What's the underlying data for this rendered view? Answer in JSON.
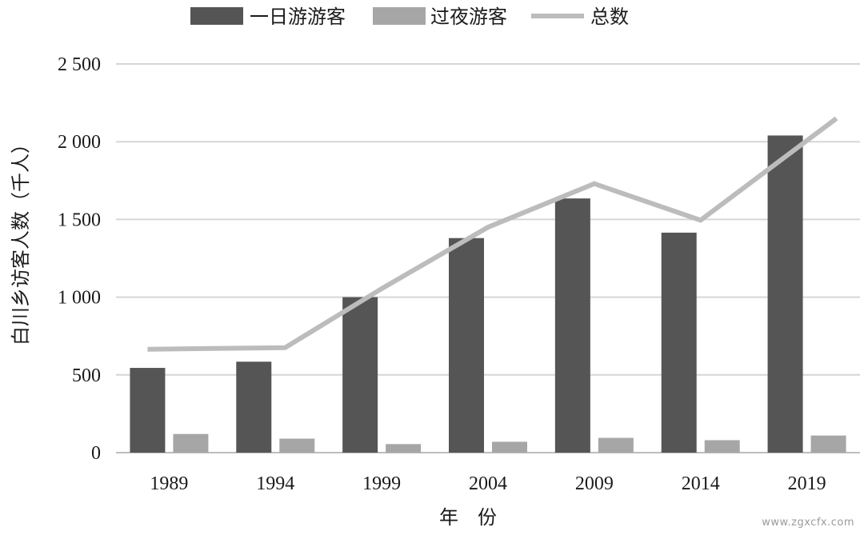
{
  "chart_data": {
    "type": "bar",
    "title": "",
    "xlabel": "年　份",
    "ylabel": "白川乡访客人数（千人）",
    "categories": [
      "1989",
      "1994",
      "1999",
      "2004",
      "2009",
      "2014",
      "2019"
    ],
    "ylim": [
      0,
      2500
    ],
    "yticks": [
      0,
      500,
      1000,
      1500,
      2000,
      2500
    ],
    "ytick_labels": [
      "0",
      "500",
      "1 000",
      "1 500",
      "2 000",
      "2 500"
    ],
    "grid": true,
    "legend_position": "top",
    "series": [
      {
        "name": "一日游游客",
        "kind": "bar",
        "color": "#555555",
        "values": [
          545,
          585,
          1000,
          1380,
          1635,
          1415,
          2040
        ]
      },
      {
        "name": "过夜游客",
        "kind": "bar",
        "color": "#a6a6a6",
        "values": [
          120,
          90,
          55,
          70,
          95,
          80,
          110
        ]
      },
      {
        "name": "总数",
        "kind": "line",
        "color": "#bcbcbc",
        "values": [
          665,
          675,
          1055,
          1450,
          1730,
          1495,
          2150
        ]
      }
    ]
  },
  "watermark": "www.zgxcfx.com"
}
